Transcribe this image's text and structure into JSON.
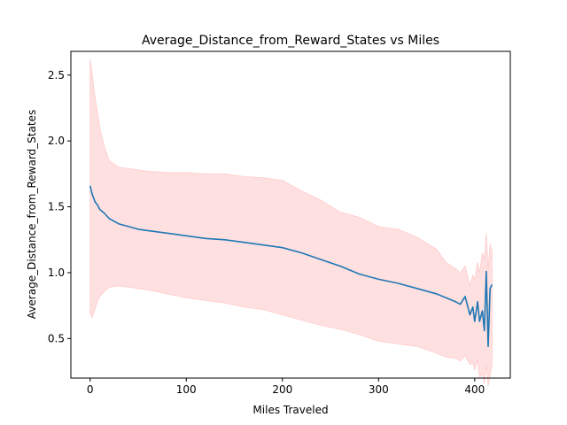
{
  "chart_data": {
    "type": "line",
    "title": "Average_Distance_from_Reward_States vs Miles",
    "xlabel": "Miles Traveled",
    "ylabel": "Average_Distance_from_Reward_States",
    "xlim": [
      -20,
      437
    ],
    "ylim": [
      0.2,
      2.68
    ],
    "xticks": [
      0,
      100,
      200,
      300,
      400
    ],
    "yticks": [
      0.5,
      1.0,
      1.5,
      2.0,
      2.5
    ],
    "xtick_labels": [
      "0",
      "100",
      "200",
      "300",
      "400"
    ],
    "ytick_labels": [
      "0.5",
      "1.0",
      "1.5",
      "2.0",
      "2.5"
    ],
    "grid": false,
    "line_color": "#1f77b4",
    "band_color": "#ffcccc",
    "series": [
      {
        "x": [
          0,
          2,
          5,
          8,
          10,
          15,
          20,
          30,
          40,
          50,
          60,
          80,
          100,
          120,
          140,
          160,
          180,
          200,
          220,
          240,
          260,
          280,
          300,
          320,
          340,
          360,
          370,
          380,
          385,
          390,
          395,
          398,
          400,
          403,
          405,
          408,
          410,
          412,
          414,
          416,
          418
        ],
        "y": [
          1.66,
          1.6,
          1.54,
          1.51,
          1.48,
          1.45,
          1.41,
          1.37,
          1.35,
          1.33,
          1.32,
          1.3,
          1.28,
          1.26,
          1.25,
          1.23,
          1.21,
          1.19,
          1.15,
          1.1,
          1.05,
          0.99,
          0.95,
          0.92,
          0.88,
          0.84,
          0.81,
          0.78,
          0.76,
          0.82,
          0.68,
          0.74,
          0.63,
          0.78,
          0.63,
          0.71,
          0.56,
          1.01,
          0.44,
          0.88,
          0.91
        ],
        "upper": [
          2.62,
          2.52,
          2.34,
          2.2,
          2.1,
          1.95,
          1.85,
          1.8,
          1.79,
          1.78,
          1.77,
          1.76,
          1.76,
          1.75,
          1.75,
          1.73,
          1.72,
          1.7,
          1.62,
          1.55,
          1.46,
          1.42,
          1.35,
          1.33,
          1.27,
          1.18,
          1.08,
          1.03,
          1.0,
          1.05,
          0.9,
          0.98,
          0.95,
          1.08,
          1.0,
          1.15,
          1.1,
          1.3,
          1.02,
          1.22,
          1.15
        ],
        "lower": [
          0.69,
          0.66,
          0.72,
          0.79,
          0.82,
          0.86,
          0.89,
          0.9,
          0.89,
          0.88,
          0.87,
          0.84,
          0.81,
          0.79,
          0.77,
          0.74,
          0.72,
          0.68,
          0.64,
          0.6,
          0.57,
          0.53,
          0.48,
          0.46,
          0.44,
          0.39,
          0.36,
          0.35,
          0.33,
          0.37,
          0.3,
          0.32,
          0.26,
          0.34,
          0.2,
          0.24,
          0.16,
          0.3,
          0.14,
          0.22,
          0.3
        ]
      }
    ]
  }
}
